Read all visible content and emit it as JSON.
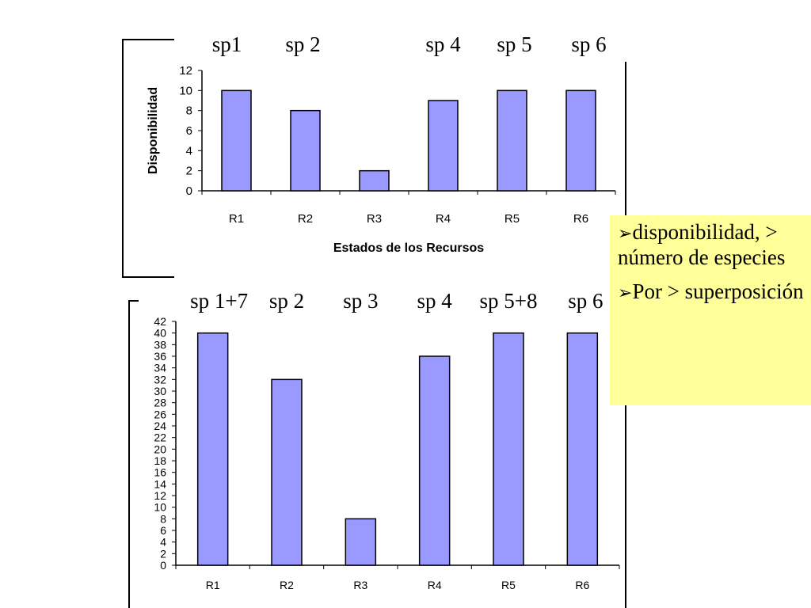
{
  "chart_data": [
    {
      "type": "bar",
      "categories": [
        "R1",
        "R2",
        "R3",
        "R4",
        "R5",
        "R6"
      ],
      "values": [
        10,
        8,
        2,
        9,
        10,
        10
      ],
      "ylim": [
        0,
        12
      ],
      "yticks": [
        0,
        2,
        4,
        6,
        8,
        10,
        12
      ],
      "xlabel": "Estados de los Recursos",
      "ylabel": "Disponibilidad",
      "bar_color": "#9999ff",
      "bar_labels_above": [
        "sp1",
        "sp 2",
        "",
        "sp 4",
        "sp 5",
        "sp 6"
      ],
      "grid": false,
      "legend": "none"
    },
    {
      "type": "bar",
      "categories": [
        "R1",
        "R2",
        "R3",
        "R4",
        "R5",
        "R6"
      ],
      "values": [
        40,
        32,
        8,
        36,
        40,
        40
      ],
      "ylim": [
        0,
        42
      ],
      "yticks": [
        0,
        2,
        4,
        6,
        8,
        10,
        12,
        14,
        16,
        18,
        20,
        22,
        24,
        26,
        28,
        30,
        32,
        34,
        36,
        38,
        40,
        42
      ],
      "xlabel": "",
      "ylabel": "",
      "bar_color": "#9999ff",
      "bar_labels_above": [
        "sp 1+7",
        "sp 2",
        "sp 3",
        "sp 4",
        "sp 5+8",
        "sp 6"
      ],
      "grid": false,
      "legend": "none"
    }
  ],
  "note": {
    "bullet_icon": "arrow-bullet-icon",
    "items": [
      "disponibilidad, > número de especies",
      "Por > superposición"
    ],
    "background": "#ffff99"
  }
}
